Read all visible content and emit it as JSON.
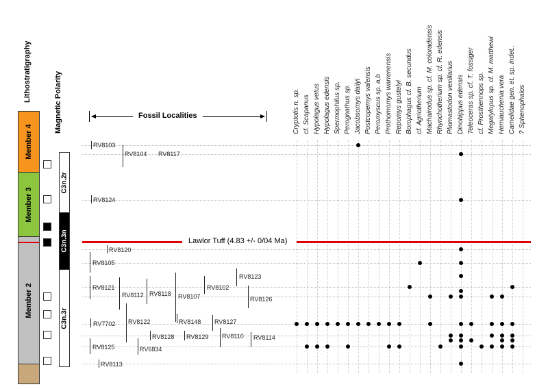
{
  "headers": {
    "lithostratigraphy": "Lithostratigraphy",
    "magnetic_polarity": "Magnetic Polarity",
    "fossil_localities": "Fossil Localities"
  },
  "members": [
    {
      "label": "Member 4",
      "color": "#f7941d"
    },
    {
      "label": "Member 3",
      "color": "#8cc63f"
    },
    {
      "label": "Member 2",
      "color": "#c0c0c0"
    },
    {
      "label": "",
      "color": "#c8a77a"
    }
  ],
  "chrons": [
    {
      "label": "C3n.2r",
      "polarity": "reversed"
    },
    {
      "label": "C3n.3n",
      "polarity": "normal"
    },
    {
      "label": "C3n.3r",
      "polarity": "reversed"
    }
  ],
  "polarity_sites": [
    "reversed",
    "reversed",
    "normal",
    "normal",
    "reversed",
    "reversed",
    "reversed",
    "reversed"
  ],
  "marker": {
    "label": "Lawlor Tuff  (4.83 +/- 0/04 Ma)",
    "color": "#e10000"
  },
  "taxa": [
    "Cryptotis n. sp.",
    "cf. Scapanus",
    "Hypolagus vetus",
    "Hypolagus edensis",
    "Spermophilus sp.",
    "Perognathus sp.",
    "Jacobsomys dailyi",
    "Postcopemys valensis",
    "Peromyscus sp. a,b",
    "Prothomomys warrenensis",
    "Repomys gustelyi",
    "Borophagus cf. B. secundus",
    "cf. Agriotherium",
    "Machairodus sp. cf. M. coloradensis",
    "Rhynchotherium sp. cf. R. edensis",
    "Pliomastodon vexillarius",
    "Dinohippus edensis",
    "Teleoceras sp. cf. T. fossiger",
    "cf. Prosthennops sp.",
    "Megatylopus sp. cf. M. matthewi",
    "Hemiauchenia vera",
    "Camelidae gen. et. sp. indet..",
    "? Sphenophalos"
  ],
  "localities": [
    "RV8103",
    "RV8104",
    "RV8117",
    "RV8124",
    "RV8120",
    "RV8105",
    "RV8123",
    "RV8121",
    "RV8102",
    "RV8112",
    "RV8118",
    "RV8107",
    "RV8126",
    "RV7702",
    "RV8122",
    "RV8148",
    "RV8127",
    "RV8128",
    "RV8129",
    "RV8110",
    "RV8114",
    "RV8125",
    "RV6834",
    "RV8113"
  ],
  "occurrence_rows": [
    {
      "level": 1,
      "taxa_present": [
        7
      ]
    },
    {
      "level": 2,
      "taxa_present": [
        17
      ]
    },
    {
      "level": 3,
      "taxa_present": [
        17
      ]
    },
    {
      "level": 4,
      "taxa_present": [
        17
      ]
    },
    {
      "level": 5,
      "taxa_present": [
        13,
        17
      ]
    },
    {
      "level": 6,
      "taxa_present": [
        17
      ]
    },
    {
      "level": 7,
      "taxa_present": [
        12,
        22
      ]
    },
    {
      "level": 8,
      "taxa_present": [
        17
      ]
    },
    {
      "level": 9,
      "taxa_present": [
        14,
        16,
        17,
        20,
        21
      ]
    },
    {
      "level": 10,
      "taxa_present": [
        1,
        2,
        3,
        4,
        5,
        6,
        7,
        8,
        9,
        10,
        11,
        14,
        17,
        18,
        20,
        21,
        22
      ]
    },
    {
      "level": 11,
      "taxa_present": [
        16,
        17,
        20,
        21,
        22
      ]
    },
    {
      "level": 12,
      "taxa_present": [
        16,
        17,
        18,
        21,
        22
      ]
    },
    {
      "level": 13,
      "taxa_present": [
        2,
        3,
        4,
        6,
        10,
        11,
        15,
        17,
        19,
        20,
        21,
        22
      ]
    },
    {
      "level": 14,
      "taxa_present": [
        17
      ]
    }
  ]
}
